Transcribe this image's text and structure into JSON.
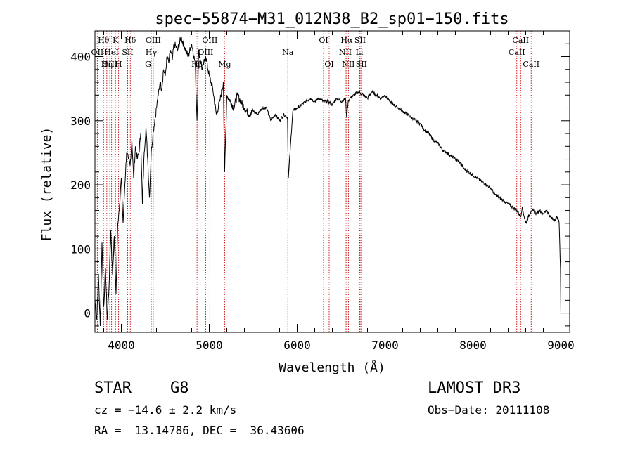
{
  "chart_data": {
    "type": "line",
    "title": "spec−55874−M31_012N38_B2_sp01−150.fits",
    "xlabel": "Wavelength (Å)",
    "ylabel": "Flux (relative)",
    "xlim": [
      3700,
      9100
    ],
    "ylim": [
      -30,
      440
    ],
    "xticks": [
      4000,
      5000,
      6000,
      7000,
      8000,
      9000
    ],
    "yticks": [
      0,
      100,
      200,
      300,
      400
    ],
    "series": [
      {
        "name": "flux",
        "x": [
          3700,
          3720,
          3740,
          3760,
          3780,
          3800,
          3820,
          3840,
          3860,
          3880,
          3900,
          3920,
          3940,
          3960,
          3980,
          4000,
          4020,
          4040,
          4060,
          4080,
          4100,
          4120,
          4140,
          4160,
          4180,
          4200,
          4220,
          4240,
          4260,
          4280,
          4300,
          4320,
          4340,
          4360,
          4380,
          4400,
          4420,
          4440,
          4460,
          4480,
          4500,
          4520,
          4540,
          4560,
          4580,
          4600,
          4640,
          4680,
          4720,
          4760,
          4800,
          4840,
          4861,
          4880,
          4920,
          4960,
          5000,
          5040,
          5080,
          5120,
          5160,
          5175,
          5200,
          5240,
          5280,
          5320,
          5360,
          5400,
          5450,
          5500,
          5550,
          5600,
          5650,
          5700,
          5750,
          5800,
          5850,
          5890,
          5900,
          5950,
          6000,
          6050,
          6100,
          6150,
          6200,
          6250,
          6300,
          6350,
          6400,
          6450,
          6500,
          6550,
          6563,
          6580,
          6600,
          6650,
          6700,
          6750,
          6800,
          6850,
          6900,
          6950,
          7000,
          7050,
          7100,
          7150,
          7200,
          7250,
          7300,
          7350,
          7400,
          7450,
          7500,
          7550,
          7600,
          7650,
          7700,
          7750,
          7800,
          7850,
          7900,
          7950,
          8000,
          8050,
          8100,
          8150,
          8200,
          8250,
          8300,
          8350,
          8400,
          8450,
          8500,
          8542,
          8560,
          8600,
          8662,
          8680,
          8720,
          8760,
          8800,
          8840,
          8880,
          8920,
          8960,
          8980,
          8995,
          9000
        ],
        "values": [
          20,
          -10,
          60,
          -20,
          110,
          10,
          70,
          -10,
          40,
          130,
          60,
          120,
          30,
          140,
          170,
          210,
          140,
          200,
          250,
          240,
          230,
          270,
          210,
          260,
          240,
          250,
          280,
          170,
          250,
          290,
          240,
          180,
          250,
          280,
          300,
          320,
          340,
          360,
          350,
          380,
          370,
          400,
          390,
          410,
          395,
          420,
          410,
          430,
          415,
          400,
          420,
          390,
          300,
          410,
          380,
          400,
          370,
          350,
          310,
          330,
          360,
          220,
          340,
          330,
          320,
          340,
          330,
          320,
          310,
          315,
          310,
          320,
          320,
          300,
          310,
          300,
          310,
          305,
          210,
          315,
          320,
          325,
          330,
          335,
          330,
          335,
          330,
          330,
          325,
          335,
          330,
          335,
          305,
          330,
          335,
          340,
          345,
          340,
          335,
          345,
          340,
          335,
          340,
          330,
          325,
          320,
          315,
          310,
          305,
          300,
          295,
          285,
          280,
          270,
          265,
          255,
          250,
          245,
          240,
          235,
          225,
          220,
          215,
          210,
          205,
          200,
          195,
          185,
          180,
          175,
          170,
          165,
          160,
          150,
          165,
          140,
          160,
          160,
          155,
          160,
          155,
          160,
          150,
          145,
          150,
          140,
          70,
          -5
        ]
      }
    ],
    "lines": [
      {
        "name": "Hθ",
        "wave": 3798,
        "row": 0
      },
      {
        "name": "OII",
        "wave": 3727,
        "row": 1
      },
      {
        "name": "OIII",
        "wave": 3869,
        "row": 2
      },
      {
        "name": "K",
        "wave": 3934,
        "row": 0
      },
      {
        "name": "HeI",
        "wave": 3889,
        "row": 1
      },
      {
        "name": "Hη",
        "wave": 3835,
        "row": 2
      },
      {
        "name": "Hδ",
        "wave": 4102,
        "row": 0
      },
      {
        "name": "SII",
        "wave": 4072,
        "row": 1
      },
      {
        "name": "H",
        "wave": 3969,
        "row": 2
      },
      {
        "name": "OIII",
        "wave": 4363,
        "row": 0
      },
      {
        "name": "Hγ",
        "wave": 4340,
        "row": 1
      },
      {
        "name": "G",
        "wave": 4304,
        "row": 2
      },
      {
        "name": "OIII",
        "wave": 5007,
        "row": 0
      },
      {
        "name": "OIII",
        "wave": 4959,
        "row": 1
      },
      {
        "name": "Hβ",
        "wave": 4861,
        "row": 2
      },
      {
        "name": "Mg",
        "wave": 5175,
        "row": 2
      },
      {
        "name": "Na",
        "wave": 5894,
        "row": 1
      },
      {
        "name": "OI",
        "wave": 6300,
        "row": 0
      },
      {
        "name": "OI",
        "wave": 6364,
        "row": 2
      },
      {
        "name": "Hα",
        "wave": 6563,
        "row": 0
      },
      {
        "name": "NII",
        "wave": 6548,
        "row": 1
      },
      {
        "name": "NII",
        "wave": 6583,
        "row": 2
      },
      {
        "name": "SII",
        "wave": 6716,
        "row": 0
      },
      {
        "name": "Li",
        "wave": 6708,
        "row": 1
      },
      {
        "name": "SII",
        "wave": 6731,
        "row": 2
      },
      {
        "name": "CaII",
        "wave": 8542,
        "row": 0
      },
      {
        "name": "CaII",
        "wave": 8498,
        "row": 1
      },
      {
        "name": "CaII",
        "wave": 8662,
        "row": 2
      }
    ]
  },
  "info": {
    "class": "STAR",
    "subclass": "G8",
    "survey": "LAMOST DR3",
    "cz": "cz = −14.6 ± 2.2 km/s",
    "obs_date": "Obs−Date: 20111108",
    "coords": "RA =  13.14786, DEC =  36.43606"
  },
  "colors": {
    "line_marker": "#cc0000",
    "spectrum": "#000000"
  }
}
